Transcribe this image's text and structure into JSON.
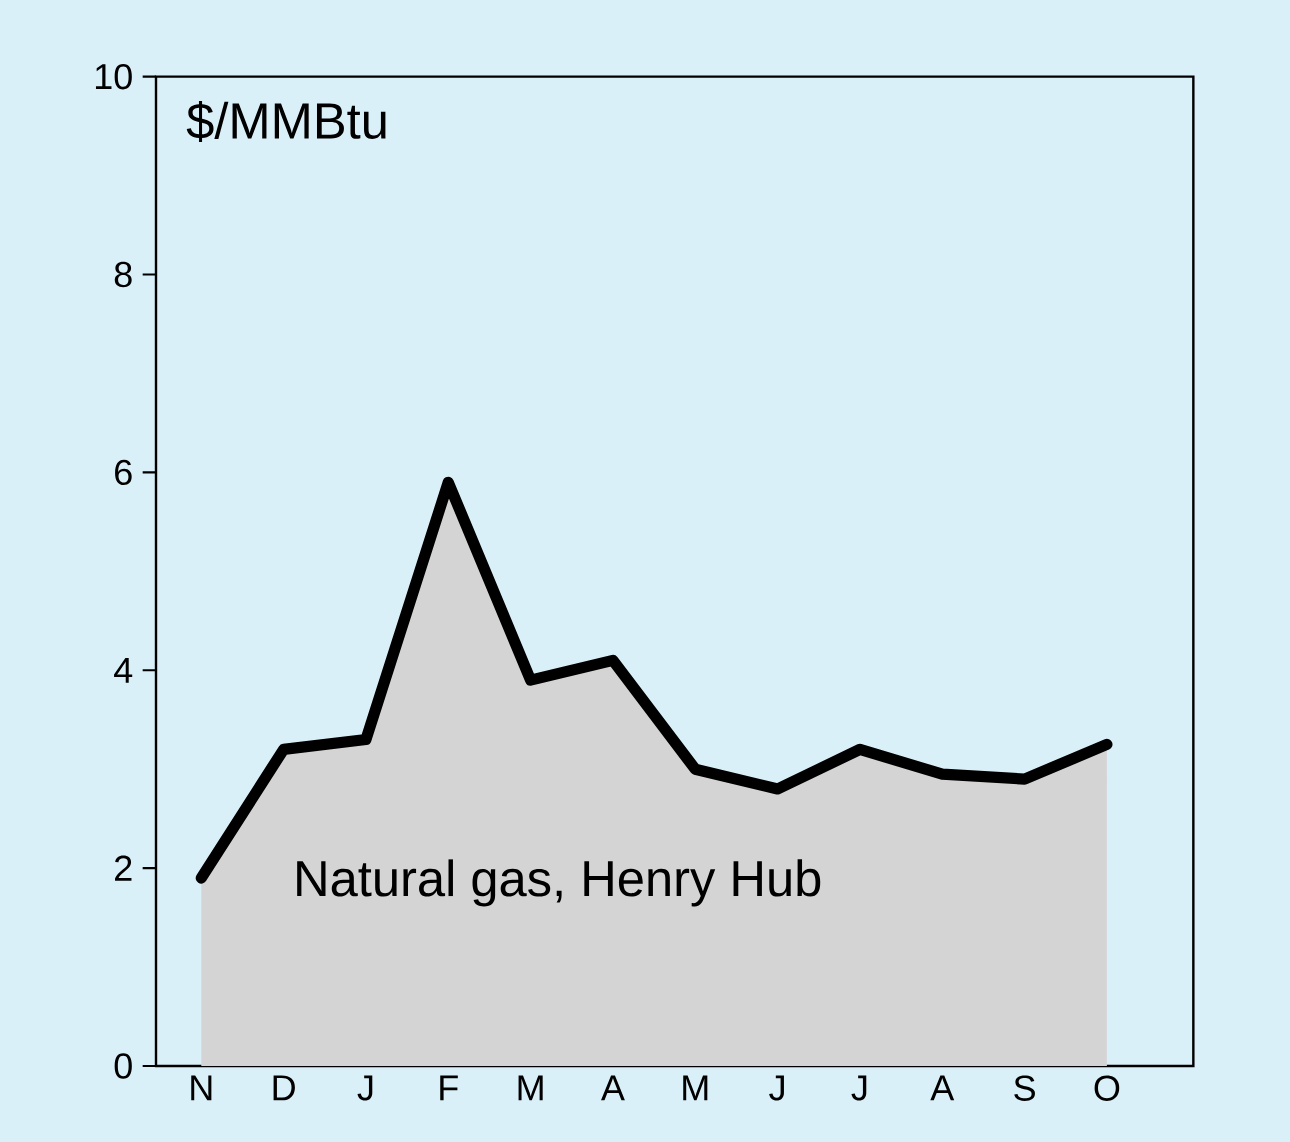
{
  "chart_data": {
    "type": "area",
    "ylabel": "$/MMBtu",
    "categories": [
      "N",
      "D",
      "J",
      "F",
      "M",
      "A",
      "M",
      "J",
      "J",
      "A",
      "S",
      "O"
    ],
    "series": [
      {
        "name": "Natural gas, Henry Hub",
        "color": "#d4d4d4",
        "values": [
          1.9,
          3.2,
          3.3,
          5.9,
          3.9,
          4.1,
          3.0,
          2.8,
          3.2,
          2.95,
          2.9,
          3.25
        ]
      }
    ],
    "ylim": [
      0,
      10
    ],
    "yticks": [
      0,
      2,
      4,
      6,
      8,
      10
    ],
    "grid": false,
    "legend": false
  }
}
